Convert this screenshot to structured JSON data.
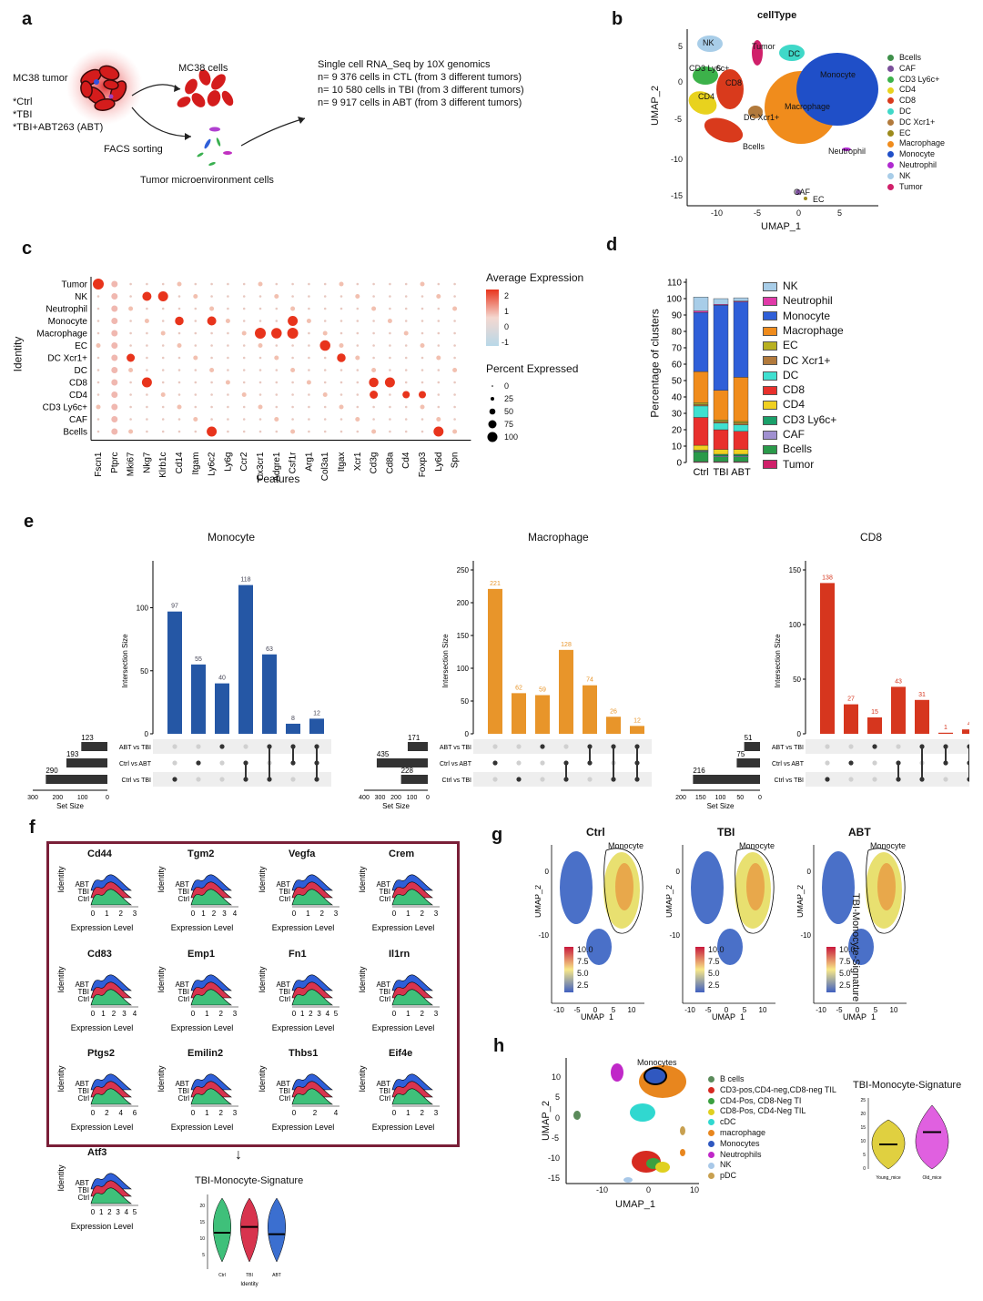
{
  "panels": {
    "a": "a",
    "b": "b",
    "c": "c",
    "d": "d",
    "e": "e",
    "f": "f",
    "g": "g",
    "h": "h"
  },
  "a": {
    "tumor_label": "MC38 tumor",
    "conditions": [
      "*Ctrl",
      "*TBI",
      "*TBI+ABT263 (ABT)"
    ],
    "cells_label": "MC38 cells",
    "facs_label": "FACS sorting",
    "tme_label": "Tumor microenvironment cells",
    "seq_lines": [
      "Single cell RNA_Seq by 10X genomics",
      "n= 9 376 cells in CTL (from 3 different tumors)",
      "n= 10 580 cells in TBI (from 3 different tumors)",
      "n= 9 917 cells in ABT (from 3 different tumors)"
    ]
  },
  "b": {
    "title": "cellType",
    "xlabel": "UMAP_1",
    "ylabel": "UMAP_2",
    "xticks": [
      "-10",
      "-5",
      "0",
      "5"
    ],
    "yticks": [
      "5",
      "0",
      "-5",
      "-10",
      "-15"
    ],
    "cluster_labels": [
      "NK",
      "Tumor",
      "DC",
      "CD3 Ly6c+",
      "CD8",
      "Monocyte",
      "CD4",
      "Macrophage",
      "DC Xcr1+",
      "Bcells",
      "Neutrophil",
      "CAF",
      "EC"
    ],
    "legend": [
      {
        "name": "Bcells",
        "color": "#3e8f4a"
      },
      {
        "name": "CAF",
        "color": "#7a4f9a"
      },
      {
        "name": "CD3 Ly6c+",
        "color": "#3cb24a"
      },
      {
        "name": "CD4",
        "color": "#e8d21e"
      },
      {
        "name": "CD8",
        "color": "#d93a1c"
      },
      {
        "name": "DC",
        "color": "#3fd8c8"
      },
      {
        "name": "DC Xcr1+",
        "color": "#b27a3c"
      },
      {
        "name": "EC",
        "color": "#9c8a1c"
      },
      {
        "name": "Macrophage",
        "color": "#f08c1c"
      },
      {
        "name": "Monocyte",
        "color": "#1f4fc8"
      },
      {
        "name": "Neutrophil",
        "color": "#b02ad0"
      },
      {
        "name": "NK",
        "color": "#a8cde8"
      },
      {
        "name": "Tumor",
        "color": "#d0206a"
      }
    ]
  },
  "c": {
    "ylabel": "Identity",
    "xlabel": "Features",
    "identities": [
      "Tumor",
      "NK",
      "Neutrophil",
      "Monocyte",
      "Macrophage",
      "EC",
      "DC Xcr1+",
      "DC",
      "CD8",
      "CD4",
      "CD3 Ly6c+",
      "CAF",
      "Bcells"
    ],
    "features": [
      "Fscn1",
      "Ptprc",
      "Mki67",
      "Nkg7",
      "Klrb1c",
      "Cd14",
      "Itgam",
      "Ly6c2",
      "Ly6g",
      "Ccr2",
      "Cx3cr1",
      "Adgre1",
      "Csf1r",
      "Arg1",
      "Col3a1",
      "Itgax",
      "Xcr1",
      "Cd3g",
      "Cd8a",
      "Cd4",
      "Foxp3",
      "Ly6d",
      "Spn"
    ],
    "avg_expr_title": "Average Expression",
    "avg_expr_ticks": [
      "2",
      "1",
      "0",
      "-1"
    ],
    "pct_title": "Percent Expressed",
    "pct_ticks": [
      "0",
      "25",
      "50",
      "75",
      "100"
    ],
    "high_dots": [
      [
        0,
        0,
        80
      ],
      [
        1,
        3,
        60
      ],
      [
        1,
        4,
        70
      ],
      [
        3,
        5,
        55
      ],
      [
        3,
        7,
        60
      ],
      [
        3,
        12,
        70
      ],
      [
        4,
        10,
        80
      ],
      [
        4,
        11,
        75
      ],
      [
        4,
        12,
        80
      ],
      [
        5,
        14,
        75
      ],
      [
        6,
        2,
        50
      ],
      [
        6,
        15,
        55
      ],
      [
        8,
        3,
        70
      ],
      [
        8,
        17,
        65
      ],
      [
        8,
        18,
        70
      ],
      [
        9,
        17,
        50
      ],
      [
        9,
        19,
        40
      ],
      [
        9,
        20,
        40
      ],
      [
        12,
        7,
        70
      ],
      [
        12,
        21,
        70
      ]
    ]
  },
  "d": {
    "ylabel": "Percentage of clusters",
    "yticks": [
      "0",
      "10",
      "20",
      "30",
      "40",
      "50",
      "60",
      "70",
      "80",
      "90",
      "100",
      "110"
    ],
    "legend": [
      {
        "name": "NK",
        "color": "#a8cde8"
      },
      {
        "name": "Neutrophil",
        "color": "#e03aa8"
      },
      {
        "name": "Monocyte",
        "color": "#2f5fd8"
      },
      {
        "name": "Macrophage",
        "color": "#f08c1c"
      },
      {
        "name": "EC",
        "color": "#b8b020"
      },
      {
        "name": "DC Xcr1+",
        "color": "#b27a3c"
      },
      {
        "name": "DC",
        "color": "#3fe0d0"
      },
      {
        "name": "CD8",
        "color": "#e8302c"
      },
      {
        "name": "CD4",
        "color": "#f0d020"
      },
      {
        "name": "CD3 Ly6c+",
        "color": "#1aa06a"
      },
      {
        "name": "CAF",
        "color": "#a090d0"
      },
      {
        "name": "Bcells",
        "color": "#2a9a4a"
      },
      {
        "name": "Tumor",
        "color": "#d0206a"
      }
    ]
  },
  "chart_data": {
    "type": "bar",
    "stacked": true,
    "categories": [
      "Ctrl",
      "TBI",
      "ABT"
    ],
    "ylabel": "Percentage of clusters",
    "ylim": [
      0,
      110
    ],
    "series": [
      {
        "name": "Tumor",
        "values": [
          0.5,
          0.5,
          0.5
        ]
      },
      {
        "name": "Bcells",
        "values": [
          6,
          3,
          3
        ]
      },
      {
        "name": "CAF",
        "values": [
          0.5,
          0.5,
          0.5
        ]
      },
      {
        "name": "CD3 Ly6c+",
        "values": [
          0.5,
          1,
          1
        ]
      },
      {
        "name": "CD4",
        "values": [
          3,
          3,
          3
        ]
      },
      {
        "name": "CD8",
        "values": [
          17,
          12,
          11
        ]
      },
      {
        "name": "DC",
        "values": [
          7,
          4,
          4
        ]
      },
      {
        "name": "DC Xcr1+",
        "values": [
          1,
          1,
          1
        ]
      },
      {
        "name": "EC",
        "values": [
          1,
          1,
          1
        ]
      },
      {
        "name": "Macrophage",
        "values": [
          19,
          18,
          27
        ]
      },
      {
        "name": "Monocyte",
        "values": [
          36,
          52,
          46
        ]
      },
      {
        "name": "Neutrophil",
        "values": [
          1,
          0.5,
          0.5
        ]
      },
      {
        "name": "NK",
        "values": [
          8.5,
          3.5,
          2
        ]
      }
    ]
  },
  "e": {
    "ylabel": "Intersection Size",
    "set_size_label": "Set Size",
    "set_names": [
      "ABT vs TBI",
      "Ctrl vs ABT",
      "Ctrl vs TBI"
    ],
    "plots": [
      {
        "title": "Monocyte",
        "color": "#2557a5",
        "bars": [
          97,
          55,
          40,
          118,
          63,
          8,
          12
        ],
        "bar_labels": [
          "97",
          "55",
          "40",
          "118",
          "63",
          "8",
          "12"
        ],
        "yticks": [
          "0",
          "50",
          "100"
        ],
        "ymax": 130,
        "sets": [
          123,
          193,
          290
        ],
        "set_labels": [
          "123",
          "193",
          "290"
        ],
        "set_ticks": [
          "300",
          "200",
          "100",
          "0"
        ],
        "set_max": 300,
        "matrix": [
          [
            2
          ],
          [
            1
          ],
          [
            0
          ],
          [
            1,
            2
          ],
          [
            0,
            2
          ],
          [
            0,
            1
          ],
          [
            0,
            1,
            2
          ]
        ]
      },
      {
        "title": "Macrophage",
        "color": "#e8952a",
        "bars": [
          221,
          62,
          59,
          128,
          74,
          26,
          12
        ],
        "bar_labels": [
          "221",
          "62",
          "59",
          "128",
          "74",
          "26",
          "12"
        ],
        "yticks": [
          "0",
          "50",
          "100",
          "150",
          "200",
          "250"
        ],
        "ymax": 250,
        "sets": [
          171,
          435,
          228
        ],
        "set_labels": [
          "171",
          "435",
          "228"
        ],
        "set_ticks": [
          "400",
          "300",
          "200",
          "100",
          "0"
        ],
        "set_max": 450,
        "matrix": [
          [
            1
          ],
          [
            2
          ],
          [
            0
          ],
          [
            1,
            2
          ],
          [
            0,
            1
          ],
          [
            0,
            2
          ],
          [
            0,
            1,
            2
          ]
        ]
      },
      {
        "title": "CD8",
        "color": "#d6361e",
        "bars": [
          138,
          27,
          15,
          43,
          31,
          1,
          4
        ],
        "bar_labels": [
          "138",
          "27",
          "15",
          "43",
          "31",
          "1",
          "4"
        ],
        "yticks": [
          "0",
          "50",
          "100",
          "150"
        ],
        "ymax": 150,
        "sets": [
          51,
          75,
          216
        ],
        "set_labels": [
          "51",
          "75",
          "216"
        ],
        "set_ticks": [
          "200",
          "150",
          "100",
          "50",
          "0"
        ],
        "set_max": 220,
        "matrix": [
          [
            2
          ],
          [
            1
          ],
          [
            0
          ],
          [
            1,
            2
          ],
          [
            0,
            2
          ],
          [
            0,
            1
          ],
          [
            0,
            1,
            2
          ]
        ]
      }
    ]
  },
  "f": {
    "genes": [
      "Cd44",
      "Tgm2",
      "Vegfa",
      "Crem",
      "Cd83",
      "Emp1",
      "Fn1",
      "Il1rn",
      "Ptgs2",
      "Emilin2",
      "Thbs1",
      "Eif4e"
    ],
    "ticks": [
      [
        "0",
        "1",
        "2",
        "3"
      ],
      [
        "0",
        "1",
        "2",
        "3",
        "4"
      ],
      [
        "0",
        "1",
        "2",
        "3"
      ],
      [
        "0",
        "1",
        "2",
        "3"
      ],
      [
        "0",
        "1",
        "2",
        "3",
        "4"
      ],
      [
        "0",
        "1",
        "2",
        "3"
      ],
      [
        "0",
        "1",
        "2",
        "3",
        "4",
        "5"
      ],
      [
        "0",
        "1",
        "2",
        "3"
      ],
      [
        "0",
        "2",
        "4",
        "6"
      ],
      [
        "0",
        "1",
        "2",
        "3"
      ],
      [
        "0",
        "2",
        "4"
      ],
      [
        "0",
        "1",
        "2",
        "3"
      ]
    ],
    "extra_gene": "Atf3",
    "extra_ticks": [
      "0",
      "1",
      "2",
      "3",
      "4",
      "5"
    ],
    "rows": [
      "ABT",
      "TBI",
      "Ctrl"
    ],
    "ylabel": "Identity",
    "xlabel": "Expression Level",
    "arrow": "↓",
    "violin_title": "TBI-Monocyte-Signature",
    "violin_xlabel": "Identity",
    "violin_groups": [
      "Ctrl",
      "TBI",
      "ABT"
    ],
    "violin_colors": [
      "#3fc07a",
      "#d8344e",
      "#3b6fd0"
    ],
    "violin_medians": [
      12.5,
      14.5,
      12
    ],
    "violin_yticks": [
      "20",
      "15",
      "10",
      "5"
    ]
  },
  "g": {
    "titles": [
      "Ctrl",
      "TBI",
      "ABT"
    ],
    "cluster_label": "Monocyte",
    "xlabel": "UMAP_1",
    "ylabel": "UMAP_2",
    "xticks": [
      "-10",
      "-5",
      "0",
      "5",
      "10"
    ],
    "yticks": [
      "0",
      "-10"
    ],
    "scale_ticks": [
      "10.0",
      "7.5",
      "5.0",
      "2.5"
    ],
    "side_label": "TBI-Monocyte-Signature"
  },
  "h": {
    "cluster_label": "Monocytes",
    "xlabel": "UMAP_1",
    "ylabel": "UMAP_2",
    "xticks": [
      "-10",
      "0",
      "10"
    ],
    "yticks": [
      "10",
      "5",
      "0",
      "-5",
      "-10",
      "-15"
    ],
    "legend": [
      {
        "name": "B cells",
        "color": "#5a8a5a"
      },
      {
        "name": "CD3-pos,CD4-neg,CD8-neg TIL",
        "color": "#d62a20"
      },
      {
        "name": "CD4-Pos, CD8-Neg TI",
        "color": "#3aa040"
      },
      {
        "name": "CD8-Pos, CD4-Neg TIL",
        "color": "#e0d020"
      },
      {
        "name": "cDC",
        "color": "#30d8d0"
      },
      {
        "name": "macrophage",
        "color": "#e8861e"
      },
      {
        "name": "Monocytes",
        "color": "#3058c0"
      },
      {
        "name": "Neutrophils",
        "color": "#c028c8"
      },
      {
        "name": "NK",
        "color": "#a8c8e8"
      },
      {
        "name": "pDC",
        "color": "#c8a050"
      }
    ],
    "violin_title": "TBI-Monocyte-Signature",
    "violin_groups": [
      "Young_mice",
      "Old_mice"
    ],
    "violin_colors": [
      "#e0d040",
      "#e060e0"
    ],
    "violin_medians": [
      9,
      13.5
    ],
    "violin_yticks": [
      "25",
      "20",
      "15",
      "10",
      "5",
      "0"
    ]
  }
}
